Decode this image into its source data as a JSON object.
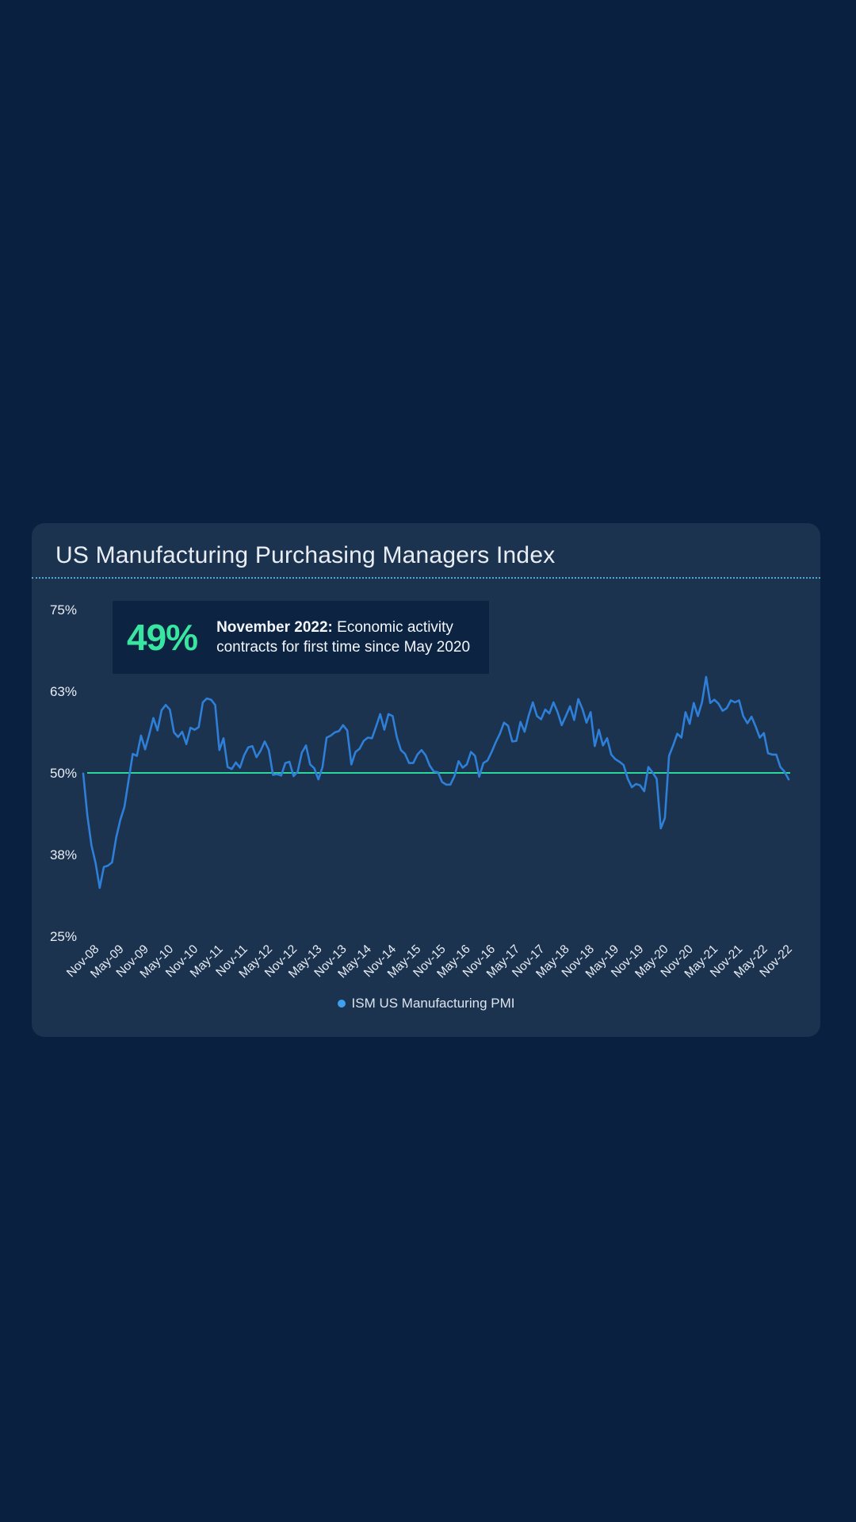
{
  "colors": {
    "page_bg": "#0A2040",
    "card_bg": "#1C3350",
    "callout_bg": "#0D2342",
    "green_accent": "#38E5A1",
    "green_line": "#2BD79B",
    "line_blue": "#2E7FD8",
    "legend_dot_blue": "#3FA0F0",
    "divider_blue": "#4FA8D8",
    "text_primary": "#E9EEF5",
    "text_secondary": "#DCE5EF"
  },
  "chart_data": {
    "type": "line",
    "title": "US Manufacturing Purchasing Managers Index",
    "xlabel": "",
    "ylabel": "",
    "x_frequency": "monthly",
    "x_start": "Aug-08",
    "x_end": "Nov-22",
    "x_tick_labels": [
      "Nov-08",
      "May-09",
      "Nov-09",
      "May-10",
      "Nov-10",
      "May-11",
      "Nov-11",
      "May-12",
      "Nov-12",
      "May-13",
      "Nov-13",
      "May-14",
      "Nov-14",
      "May-15",
      "Nov-15",
      "May-16",
      "Nov-16",
      "May-17",
      "Nov-17",
      "May-18",
      "Nov-18",
      "May-19",
      "Nov-19",
      "May-20",
      "Nov-20",
      "May-21",
      "Nov-21",
      "May-22",
      "Nov-22"
    ],
    "x_first_tick_index": 3,
    "x_tick_every": 6,
    "y_ticks": [
      {
        "label": "75%",
        "value": 75
      },
      {
        "label": "63%",
        "value": 62.5
      },
      {
        "label": "50%",
        "value": 50
      },
      {
        "label": "38%",
        "value": 37.5
      },
      {
        "label": "25%",
        "value": 25
      }
    ],
    "y_range": [
      25,
      75
    ],
    "grid": false,
    "legend_position": "bottom",
    "reference_line": {
      "value": 50
    },
    "series": [
      {
        "name": "ISM US Manufacturing PMI",
        "values": [
          49.9,
          43.5,
          38.9,
          36.2,
          32.4,
          35.6,
          35.8,
          36.3,
          40.1,
          42.8,
          44.8,
          48.9,
          52.9,
          52.6,
          55.7,
          53.6,
          55.9,
          58.4,
          56.5,
          59.6,
          60.4,
          59.7,
          56.2,
          55.5,
          56.3,
          54.4,
          56.9,
          56.6,
          57.0,
          60.8,
          61.4,
          61.2,
          60.4,
          53.5,
          55.3,
          50.9,
          50.6,
          51.6,
          50.8,
          52.7,
          53.9,
          54.1,
          52.4,
          53.4,
          54.8,
          53.5,
          49.7,
          49.8,
          49.6,
          51.5,
          51.7,
          49.5,
          50.2,
          53.1,
          54.2,
          51.3,
          50.7,
          49.0,
          50.9,
          55.4,
          55.7,
          56.2,
          56.4,
          57.3,
          56.5,
          51.3,
          53.2,
          53.7,
          54.9,
          55.4,
          55.3,
          57.1,
          59.0,
          56.6,
          59.0,
          58.7,
          55.5,
          53.5,
          52.9,
          51.5,
          51.5,
          52.8,
          53.5,
          52.7,
          51.1,
          50.2,
          50.1,
          48.6,
          48.2,
          48.2,
          49.5,
          51.8,
          50.8,
          51.3,
          53.2,
          52.6,
          49.4,
          51.5,
          51.9,
          53.2,
          54.7,
          56.0,
          57.7,
          57.2,
          54.8,
          54.9,
          57.8,
          56.3,
          58.8,
          60.8,
          58.7,
          58.2,
          59.7,
          59.1,
          60.8,
          59.3,
          57.3,
          58.7,
          60.2,
          58.1,
          61.3,
          59.8,
          57.7,
          59.3,
          54.1,
          56.6,
          54.2,
          55.3,
          52.8,
          52.1,
          51.7,
          51.2,
          49.1,
          47.8,
          48.3,
          48.1,
          47.2,
          50.9,
          50.1,
          49.1,
          41.5,
          43.1,
          52.6,
          54.2,
          56.0,
          55.4,
          59.3,
          57.5,
          60.7,
          58.7,
          60.8,
          64.7,
          60.7,
          61.2,
          60.6,
          59.5,
          59.9,
          61.1,
          60.8,
          61.1,
          58.7,
          57.6,
          58.6,
          57.1,
          55.4,
          56.1,
          53.0,
          52.8,
          52.8,
          50.9,
          50.2,
          49.0
        ]
      }
    ],
    "annotation": {
      "value": "49%",
      "label_bold": "November 2022:",
      "line1_rest": " Economic activity",
      "line2": "contracts for first time since May 2020"
    }
  }
}
